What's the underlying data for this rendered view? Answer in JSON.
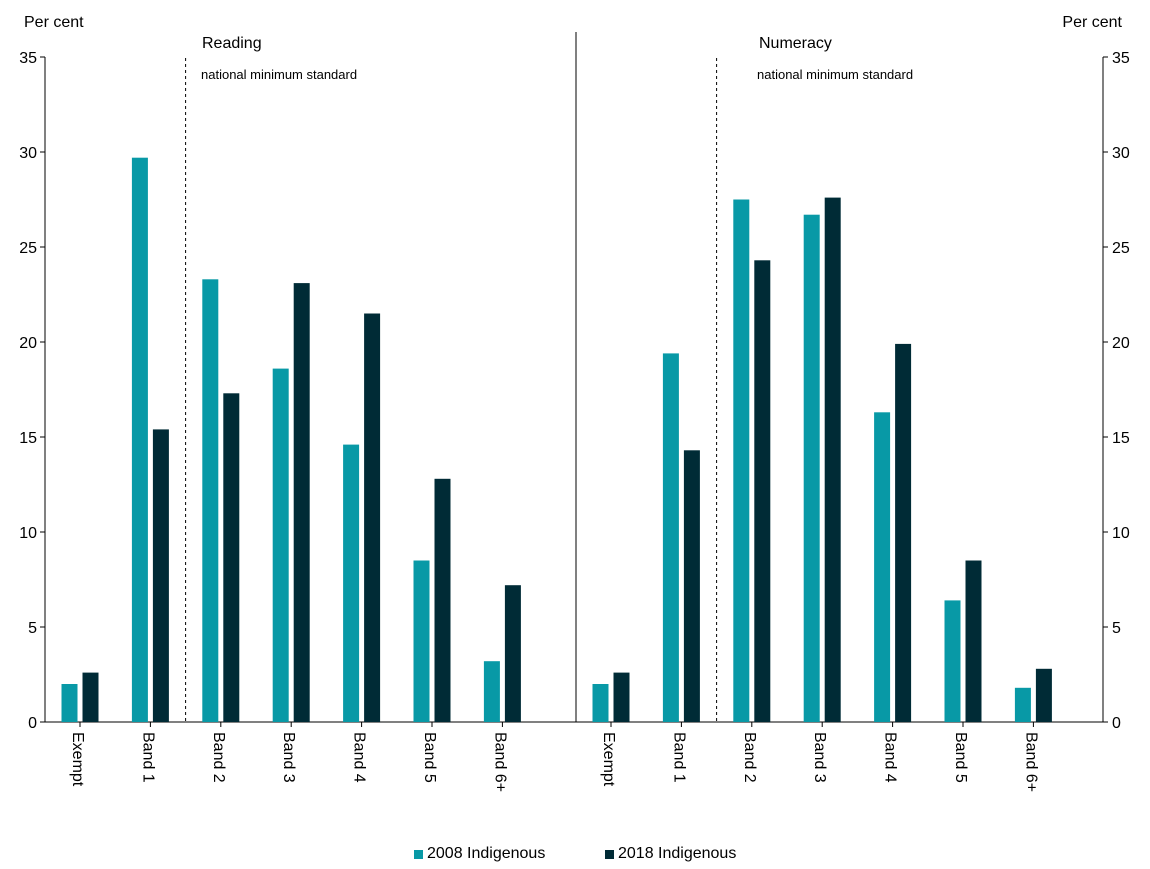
{
  "chart_data": {
    "type": "bar",
    "y_unit_label": "Per cent",
    "ylim": [
      0,
      35
    ],
    "yticks": [
      0,
      5,
      10,
      15,
      20,
      25,
      30,
      35
    ],
    "grid": false,
    "legend_position": "bottom",
    "colors": {
      "2008 Indigenous": "#0899a6",
      "2018 Indigenous": "#002b36"
    },
    "series_names": [
      "2008 Indigenous",
      "2018 Indigenous"
    ],
    "panels": [
      {
        "title": "Reading",
        "annotation": "national minimum standard",
        "categories": [
          "Exempt",
          "Band 1",
          "Band 2",
          "Band 3",
          "Band 4",
          "Band 5",
          "Band 6+"
        ],
        "series": [
          {
            "name": "2008 Indigenous",
            "values": [
              2.0,
              29.7,
              23.3,
              18.6,
              14.6,
              8.5,
              3.2
            ]
          },
          {
            "name": "2018 Indigenous",
            "values": [
              2.6,
              15.4,
              17.3,
              23.1,
              21.5,
              12.8,
              7.2
            ]
          }
        ]
      },
      {
        "title": "Numeracy",
        "annotation": "national minimum standard",
        "categories": [
          "Exempt",
          "Band 1",
          "Band 2",
          "Band 3",
          "Band 4",
          "Band 5",
          "Band 6+"
        ],
        "series": [
          {
            "name": "2008 Indigenous",
            "values": [
              2.0,
              19.4,
              27.5,
              26.7,
              16.3,
              6.4,
              1.8
            ]
          },
          {
            "name": "2018 Indigenous",
            "values": [
              2.6,
              14.3,
              24.3,
              27.6,
              19.9,
              8.5,
              2.8
            ]
          }
        ]
      }
    ]
  }
}
